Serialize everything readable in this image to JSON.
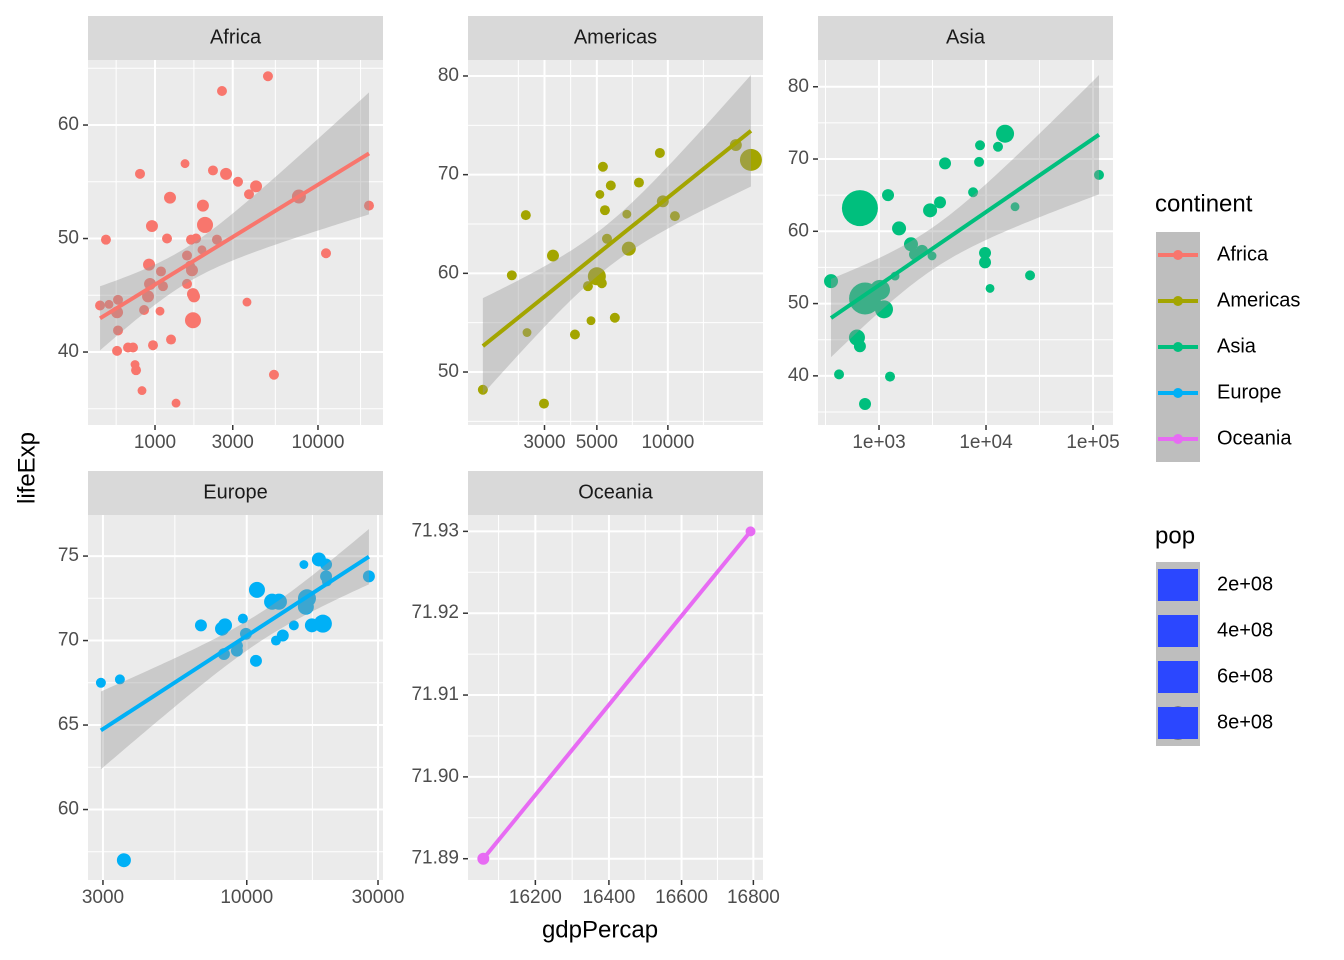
{
  "chart_data": [
    {
      "type": "scatter",
      "title": "Africa",
      "color": "#F8766D",
      "xlog": true,
      "smooth": "lm",
      "x": [
        460,
        522,
        500,
        593,
        585,
        593,
        585,
        683,
        733,
        754,
        765,
        832,
        809,
        857,
        906,
        932,
        919,
        958,
        972,
        1073,
        1088,
        1119,
        1185,
        1236,
        1254,
        1346,
        1528,
        1572,
        1572,
        1640,
        1663,
        1686,
        1710,
        1710,
        1735,
        1786,
        1941,
        1968,
        2027,
        2268,
        2399,
        2576,
        2728,
        3230,
        3667,
        3774,
        4169,
        4932,
        5370,
        7640,
        11200,
        20560
      ],
      "y": [
        44.1,
        44.2,
        49.9,
        44.6,
        43.5,
        41.9,
        40.1,
        40.4,
        40.4,
        38.9,
        38.4,
        36.6,
        55.7,
        43.7,
        44.9,
        46.0,
        47.7,
        51.1,
        40.6,
        43.6,
        47.1,
        45.8,
        50.0,
        53.6,
        41.1,
        35.5,
        56.6,
        48.5,
        46.0,
        47.6,
        49.9,
        47.2,
        45.1,
        42.8,
        44.9,
        50.0,
        49.0,
        52.9,
        51.2,
        56.0,
        49.9,
        63.0,
        55.7,
        55.0,
        44.4,
        53.9,
        54.6,
        64.3,
        38.0,
        53.7,
        48.7,
        52.9
      ],
      "sizes": [
        5000000,
        1000000,
        5000000,
        5000000,
        20000000,
        5000000,
        5000000,
        5000000,
        5000000,
        1000000,
        5000000,
        1000000,
        5000000,
        5000000,
        20000000,
        20000000,
        20000000,
        20000000,
        5000000,
        1000000,
        5000000,
        5000000,
        5000000,
        20000000,
        5000000,
        1000000,
        1000000,
        5000000,
        5000000,
        5000000,
        5000000,
        20000000,
        20000000,
        82000000,
        20000000,
        5000000,
        1000000,
        20000000,
        82000000,
        5000000,
        5000000,
        5000000,
        20000000,
        5000000,
        1000000,
        5000000,
        20000000,
        5000000,
        5000000,
        46000000,
        5000000,
        5000000
      ],
      "xlim": [
        388,
        25060
      ],
      "ylim": [
        33.57,
        65.73
      ],
      "xticks": [
        1000,
        3000,
        10000
      ],
      "yticks": [
        40,
        50,
        60
      ]
    },
    {
      "type": "scatter",
      "title": "Americas",
      "color": "#A3A500",
      "xlog": true,
      "smooth": "lm",
      "x": [
        1644,
        2181,
        2500,
        2529,
        2985,
        3259,
        4038,
        4584,
        4722,
        5000,
        5150,
        5305,
        5250,
        5410,
        5520,
        5730,
        5960,
        6830,
        6700,
        7540,
        9250,
        9520,
        10710,
        19410,
        22490
      ],
      "y": [
        48.2,
        59.8,
        65.9,
        54.0,
        46.8,
        61.8,
        53.8,
        58.7,
        55.2,
        59.7,
        68.0,
        70.8,
        59.0,
        66.4,
        63.5,
        68.9,
        55.5,
        62.5,
        66.0,
        69.2,
        72.2,
        67.3,
        65.8,
        73.0,
        71.5
      ],
      "sizes": [
        5000000,
        5000000,
        5000000,
        1000000,
        5000000,
        20000000,
        5000000,
        5000000,
        1000000,
        128000000,
        1000000,
        5000000,
        5000000,
        5000000,
        5000000,
        5000000,
        5000000,
        46000000,
        1000000,
        5000000,
        5000000,
        20000000,
        5000000,
        20000000,
        250000000
      ],
      "xlim": [
        1422,
        25300
      ],
      "ylim": [
        44.63,
        81.62
      ],
      "xticks": [
        3000,
        5000,
        10000
      ],
      "yticks": [
        50,
        60,
        70,
        80
      ]
    },
    {
      "type": "scatter",
      "title": "Asia",
      "color": "#00BF7D",
      "xlog": true,
      "smooth": "lm",
      "x": [
        356,
        423,
        622,
        663,
        663,
        740,
        740,
        1021,
        1113,
        1214,
        1267,
        1412,
        1539,
        1990,
        2169,
        2523,
        3000,
        3128,
        3717,
        4140,
        7570,
        8610,
        8790,
        9790,
        9790,
        10900,
        12940,
        15060,
        18670,
        25790,
        113700
      ],
      "y": [
        53.1,
        40.2,
        45.3,
        44.1,
        63.2,
        50.7,
        36.1,
        51.9,
        49.2,
        65.0,
        39.9,
        53.8,
        60.4,
        58.2,
        56.8,
        57.3,
        62.9,
        56.6,
        64.0,
        69.4,
        65.4,
        69.6,
        71.9,
        57.0,
        55.7,
        52.1,
        71.7,
        73.5,
        63.4,
        53.9,
        67.8
      ],
      "sizes": [
        46000000,
        5000000,
        82000000,
        20000000,
        1000000000,
        730000000,
        20000000,
        184000000,
        128000000,
        20000000,
        5000000,
        1000000,
        46000000,
        46000000,
        20000000,
        20000000,
        46000000,
        1000000,
        20000000,
        20000000,
        5000000,
        5000000,
        5000000,
        20000000,
        20000000,
        1000000,
        5000000,
        128000000,
        1000000,
        5000000,
        5000000
      ],
      "xlim": [
        269,
        153700
      ],
      "ylim": [
        33.2,
        83.7
      ],
      "xticks": [
        {
          "value": 1000,
          "label": "1e+03"
        },
        {
          "value": 10000,
          "label": "1e+04"
        },
        {
          "value": 100000,
          "label": "1e+05"
        }
      ],
      "yticks": [
        40,
        50,
        60,
        70,
        80
      ]
    },
    {
      "type": "scatter",
      "title": "Europe",
      "color": "#00B0F6",
      "xlog": true,
      "smooth": "lm",
      "x": [
        2949,
        3457,
        3575,
        6813,
        8128,
        8334,
        8260,
        9208,
        9290,
        9680,
        9930,
        10800,
        10890,
        12360,
        12770,
        13090,
        13520,
        14830,
        16130,
        16400,
        16550,
        16680,
        17250,
        18290,
        18910,
        19420,
        19420,
        19560,
        27800
      ],
      "y": [
        67.5,
        67.7,
        57.0,
        70.9,
        70.7,
        70.9,
        69.2,
        69.4,
        69.7,
        71.3,
        70.4,
        68.8,
        73.0,
        72.3,
        70.0,
        72.3,
        70.3,
        70.9,
        74.5,
        72.0,
        72.5,
        72.4,
        70.9,
        74.8,
        71.0,
        74.5,
        73.8,
        73.5,
        73.8
      ],
      "sizes": [
        5000000,
        5000000,
        46000000,
        20000000,
        46000000,
        46000000,
        20000000,
        20000000,
        5000000,
        5000000,
        20000000,
        20000000,
        82000000,
        82000000,
        5000000,
        82000000,
        20000000,
        5000000,
        1000000,
        82000000,
        128000000,
        46000000,
        46000000,
        46000000,
        128000000,
        20000000,
        20000000,
        5000000,
        20000000
      ],
      "xlim": [
        2647,
        31280
      ],
      "ylim": [
        55.83,
        77.43
      ],
      "xticks": [
        3000,
        10000,
        30000
      ],
      "yticks": [
        60,
        65,
        70,
        75
      ]
    },
    {
      "type": "scatter",
      "title": "Oceania",
      "color": "#E76BF3",
      "xlog": true,
      "smooth": "lm",
      "x": [
        16060,
        16792
      ],
      "y": [
        71.89,
        71.93
      ],
      "sizes": [
        20000000,
        5000000
      ],
      "xlim": [
        16019,
        16827
      ],
      "ylim": [
        71.8874,
        71.932
      ],
      "xticks": [
        16200,
        16400,
        16600,
        16800
      ],
      "yticks": [
        71.89,
        {
          "value": 71.9,
          "label": "71.90"
        },
        71.91,
        71.92,
        71.93
      ]
    }
  ],
  "xlabel": "gdpPercap",
  "ylabel": "lifeExp",
  "color_legend": {
    "title": "continent"
  },
  "size_legend": {
    "title": "pop",
    "color": "#2B47FF",
    "breaks": [
      {
        "value": 200000000,
        "label": "2e+08"
      },
      {
        "value": 400000000,
        "label": "4e+08"
      },
      {
        "value": 600000000,
        "label": "6e+08"
      },
      {
        "value": 800000000,
        "label": "8e+08"
      }
    ]
  }
}
